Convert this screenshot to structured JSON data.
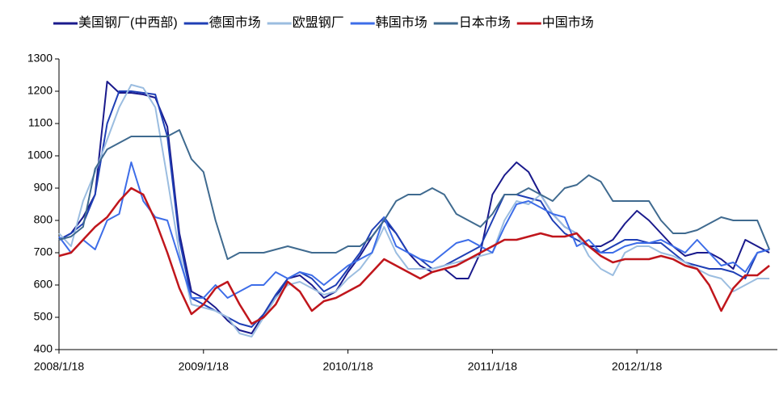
{
  "chart_data": {
    "type": "line",
    "categories": [
      "2008/1/18",
      null,
      null,
      null,
      null,
      null,
      null,
      null,
      null,
      null,
      null,
      null,
      "2009/1/18",
      null,
      null,
      null,
      null,
      null,
      null,
      null,
      null,
      null,
      null,
      null,
      "2010/1/18",
      null,
      null,
      null,
      null,
      null,
      null,
      null,
      null,
      null,
      null,
      null,
      "2011/1/18",
      null,
      null,
      null,
      null,
      null,
      null,
      null,
      null,
      null,
      null,
      null,
      "2012/1/18",
      null,
      null,
      null,
      null,
      null,
      null,
      null,
      null,
      null,
      null,
      null
    ],
    "ylim": [
      400,
      1300
    ],
    "yticks": [
      400,
      500,
      600,
      700,
      800,
      900,
      1000,
      1100,
      1200,
      1300
    ],
    "legend": "top",
    "series": [
      {
        "name": "美国钢厂(中西部)",
        "color": "#1a1a8c",
        "values": [
          740,
          760,
          810,
          880,
          1230,
          1195,
          1195,
          1190,
          1180,
          1090,
          760,
          580,
          560,
          530,
          490,
          460,
          450,
          510,
          560,
          620,
          630,
          600,
          560,
          580,
          640,
          690,
          750,
          800,
          760,
          700,
          660,
          640,
          650,
          620,
          620,
          700,
          880,
          940,
          980,
          950,
          880,
          820,
          780,
          760,
          720,
          720,
          740,
          790,
          830,
          800,
          760,
          720,
          690,
          700,
          700,
          680,
          650,
          740,
          720,
          700
        ]
      },
      {
        "name": "德国市场",
        "color": "#1f3fb5",
        "values": [
          740,
          760,
          790,
          880,
          1100,
          1200,
          1200,
          1195,
          1190,
          1060,
          740,
          560,
          540,
          520,
          500,
          480,
          470,
          510,
          570,
          620,
          640,
          620,
          580,
          600,
          650,
          700,
          770,
          810,
          760,
          700,
          680,
          650,
          660,
          680,
          700,
          720,
          800,
          880,
          880,
          870,
          860,
          800,
          760,
          740,
          720,
          700,
          720,
          740,
          740,
          730,
          730,
          700,
          670,
          660,
          650,
          650,
          640,
          620,
          700,
          710
        ]
      },
      {
        "name": "欧盟钢厂",
        "color": "#9bbde0",
        "values": [
          760,
          720,
          860,
          950,
          1050,
          1150,
          1220,
          1210,
          1150,
          930,
          700,
          540,
          530,
          520,
          500,
          450,
          440,
          500,
          560,
          600,
          610,
          590,
          570,
          580,
          620,
          650,
          700,
          780,
          700,
          650,
          650,
          650,
          660,
          670,
          680,
          690,
          700,
          800,
          860,
          850,
          880,
          820,
          780,
          760,
          690,
          650,
          630,
          700,
          720,
          720,
          700,
          690,
          670,
          650,
          630,
          620,
          580,
          600,
          620,
          620
        ]
      },
      {
        "name": "韩国市场",
        "color": "#3d6de8",
        "values": [
          750,
          700,
          740,
          710,
          800,
          820,
          980,
          860,
          810,
          800,
          680,
          560,
          560,
          600,
          560,
          580,
          600,
          600,
          640,
          620,
          640,
          630,
          600,
          630,
          660,
          680,
          700,
          810,
          720,
          700,
          680,
          670,
          700,
          730,
          740,
          720,
          700,
          780,
          850,
          860,
          840,
          820,
          810,
          720,
          740,
          700,
          700,
          720,
          730,
          730,
          740,
          720,
          700,
          740,
          700,
          660,
          670,
          640,
          700,
          710
        ]
      },
      {
        "name": "日本市场",
        "color": "#3f6a8f",
        "values": [
          740,
          750,
          780,
          960,
          1020,
          1040,
          1060,
          1060,
          1060,
          1060,
          1080,
          990,
          950,
          800,
          680,
          700,
          700,
          700,
          710,
          720,
          710,
          700,
          700,
          700,
          720,
          720,
          750,
          800,
          860,
          880,
          880,
          900,
          880,
          820,
          800,
          780,
          820,
          880,
          880,
          900,
          880,
          860,
          900,
          910,
          940,
          920,
          860,
          860,
          860,
          860,
          800,
          760,
          760,
          770,
          790,
          810,
          800,
          800,
          800,
          710
        ]
      },
      {
        "name": "中国市场",
        "color": "#c0161c",
        "values": [
          690,
          700,
          740,
          780,
          810,
          860,
          900,
          880,
          800,
          700,
          590,
          510,
          540,
          590,
          610,
          540,
          480,
          500,
          540,
          610,
          580,
          520,
          550,
          560,
          580,
          600,
          640,
          680,
          660,
          640,
          620,
          640,
          650,
          660,
          680,
          700,
          720,
          740,
          740,
          750,
          760,
          750,
          750,
          760,
          720,
          690,
          670,
          680,
          680,
          680,
          690,
          680,
          660,
          650,
          600,
          520,
          590,
          630,
          630,
          660
        ]
      }
    ]
  }
}
